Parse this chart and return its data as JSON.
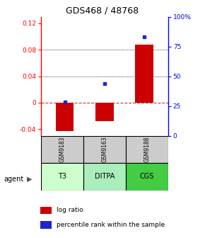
{
  "title": "GDS468 / 48768",
  "samples": [
    "GSM9183",
    "GSM9163",
    "GSM9188"
  ],
  "agents": [
    "T3",
    "DITPA",
    "CGS"
  ],
  "log_ratios": [
    -0.043,
    -0.028,
    0.088
  ],
  "percentile_ranks": [
    0.28,
    0.44,
    0.83
  ],
  "bar_color": "#cc0000",
  "dot_color": "#2222cc",
  "ylim_left": [
    -0.05,
    0.13
  ],
  "ylim_right": [
    0.0,
    1.0
  ],
  "yticks_left": [
    -0.04,
    0.0,
    0.04,
    0.08,
    0.12
  ],
  "yticks_right": [
    0.0,
    0.25,
    0.5,
    0.75,
    1.0
  ],
  "ytick_labels_left": [
    "-0.04",
    "0",
    "0.04",
    "0.08",
    "0.12"
  ],
  "ytick_labels_right": [
    "0",
    "25",
    "50",
    "75",
    "100%"
  ],
  "hlines": [
    0.04,
    0.08
  ],
  "agent_colors": [
    "#ccffcc",
    "#aaeebb",
    "#44cc44"
  ],
  "sample_bg": "#cccccc",
  "zero_line_color": "#cc3333",
  "bar_width": 0.45,
  "title_fontsize": 9
}
